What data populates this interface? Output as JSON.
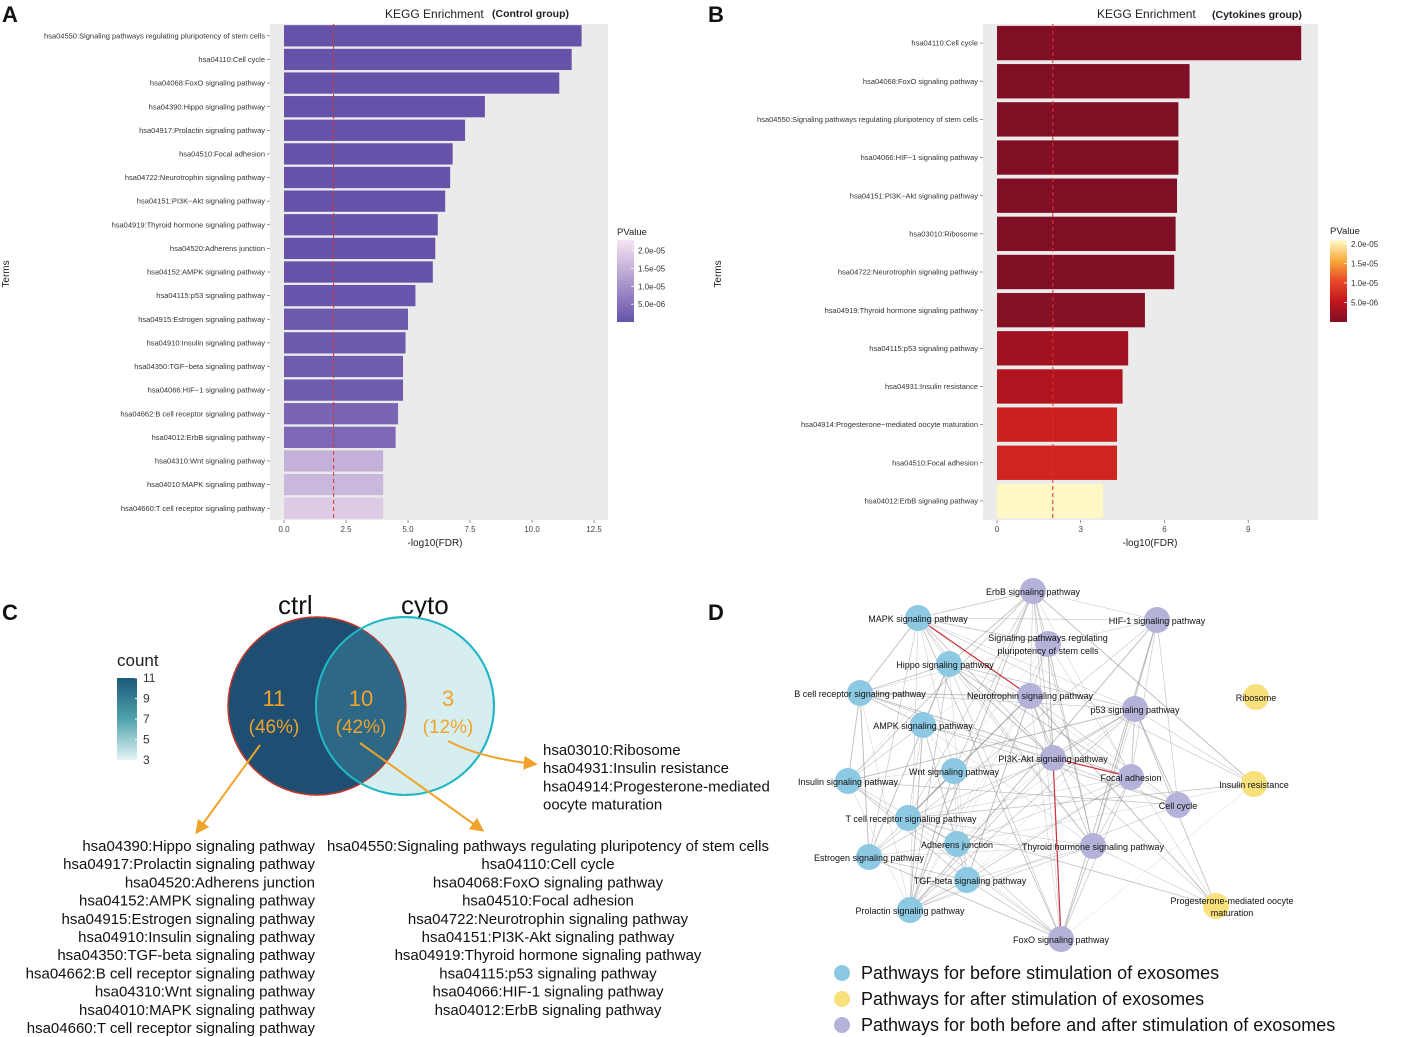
{
  "panels": {
    "a": "A",
    "b": "B",
    "c": "C",
    "d": "D"
  },
  "chart_data": [
    {
      "id": "A",
      "type": "bar",
      "orientation": "horizontal",
      "title": "KEGG Enrichment",
      "subtitle": "(Control group)",
      "xlabel": "-log10(FDR)",
      "ylabel": "Terms",
      "xlim": [
        0,
        12.5
      ],
      "xticks": [
        "0.0",
        "2.5",
        "5.0",
        "7.5",
        "10.0",
        "12.5"
      ],
      "xtick_values": [
        0,
        2.5,
        5,
        7.5,
        10,
        12.5
      ],
      "threshold": 2,
      "legend_title": "PValue",
      "legend_ticks": [
        "2.0e-05",
        "1.5e-05",
        "1.0e-05",
        "5.0e-06"
      ],
      "legend_tick_values": [
        2e-05,
        1.5e-05,
        1e-05,
        5e-06
      ],
      "color_scale": {
        "low": "#6652a9",
        "high": "#f6e4f3",
        "min": 1e-12,
        "max": 2.3e-05
      },
      "categories": [
        "hsa04550:Signaling pathways regulating pluripotency of stem cells",
        "hsa04110:Cell cycle",
        "hsa04068:FoxO signaling pathway",
        "hsa04390:Hippo signaling pathway",
        "hsa04917:Prolactin signaling pathway",
        "hsa04510:Focal adhesion",
        "hsa04722:Neurotrophin signaling pathway",
        "hsa04151:PI3K−Akt signaling pathway",
        "hsa04919:Thyroid hormone signaling pathway",
        "hsa04520:Adherens junction",
        "hsa04152:AMPK signaling pathway",
        "hsa04115:p53 signaling pathway",
        "hsa04915:Estrogen signaling pathway",
        "hsa04910:Insulin signaling pathway",
        "hsa04350:TGF−beta signaling pathway",
        "hsa04066:HIF−1 signaling pathway",
        "hsa04662:B cell receptor signaling pathway",
        "hsa04012:ErbB signaling pathway",
        "hsa04310:Wnt signaling pathway",
        "hsa04010:MAPK signaling pathway",
        "hsa04660:T cell receptor signaling pathway"
      ],
      "values": [
        12.0,
        11.6,
        11.1,
        8.1,
        7.3,
        6.8,
        6.7,
        6.5,
        6.2,
        6.1,
        6.0,
        5.3,
        5.0,
        4.9,
        4.8,
        4.8,
        4.6,
        4.5,
        4.0,
        4.0,
        4.0
      ],
      "pvalues": [
        1e-12,
        1e-12,
        1e-12,
        1e-09,
        1e-08,
        2e-08,
        2e-08,
        3e-08,
        5e-08,
        6e-08,
        7e-08,
        5e-07,
        1e-06,
        1.2e-06,
        1.5e-06,
        1.5e-06,
        3e-06,
        3.5e-06,
        1.5e-05,
        1.6e-05,
        1.9e-05
      ]
    },
    {
      "id": "B",
      "type": "bar",
      "orientation": "horizontal",
      "title": "KEGG Enrichment",
      "subtitle": "(Cytokines group)",
      "xlabel": "-log10(FDR)",
      "ylabel": "Terms",
      "xlim": [
        0,
        11
      ],
      "xticks": [
        "0",
        "3",
        "6",
        "9"
      ],
      "xtick_values": [
        0,
        3,
        6,
        9
      ],
      "threshold": 2,
      "legend_title": "PValue",
      "legend_ticks": [
        "2.0e-05",
        "1.5e-05",
        "1.0e-05",
        "5.0e-06"
      ],
      "legend_tick_values": [
        2e-05,
        1.5e-05,
        1e-05,
        5e-06
      ],
      "color_scale": {
        "stops": [
          "#800f25",
          "#c3161c",
          "#e8482a",
          "#f9aa3a",
          "#fff2b0",
          "#fffacc"
        ],
        "min": 1e-12,
        "max": 2.1e-05
      },
      "categories": [
        "hsa04110:Cell cycle",
        "hsa04068:FoxO signaling pathway",
        "hsa04550:Signaling pathways regulating pluripotency of stem cells",
        "hsa04066:HIF−1 signaling pathway",
        "hsa04151:PI3K−Akt signaling pathway",
        "hsa03010:Ribosome",
        "hsa04722:Neurotrophin signaling pathway",
        "hsa04919:Thyroid hormone signaling pathway",
        "hsa04115:p53 signaling pathway",
        "hsa04931:Insulin resistance",
        "hsa04914:Progesterone−mediated oocyte maturation",
        "hsa04510:Focal adhesion",
        "hsa04012:ErbB signaling pathway"
      ],
      "values": [
        10.9,
        6.9,
        6.5,
        6.5,
        6.45,
        6.4,
        6.35,
        5.3,
        4.7,
        4.5,
        4.3,
        4.3,
        3.8
      ],
      "pvalues": [
        1e-12,
        1e-09,
        1e-08,
        1e-08,
        1e-08,
        1e-08,
        2e-08,
        4e-07,
        2e-06,
        3e-06,
        5e-06,
        5.5e-06,
        2e-05
      ]
    },
    {
      "id": "C",
      "type": "venn",
      "sets": [
        "ctrl",
        "cyto"
      ],
      "regions": [
        {
          "name": "ctrl only",
          "count": "11",
          "percent": "(46%)"
        },
        {
          "name": "both",
          "count": "10",
          "percent": "(42%)"
        },
        {
          "name": "cyto only",
          "count": "3",
          "percent": "(12%)"
        }
      ],
      "legend_title": "count",
      "legend_ticks": [
        "11",
        "9",
        "7",
        "5",
        "3"
      ]
    },
    {
      "id": "D",
      "type": "network",
      "nodes": [
        {
          "label": "ErbB signaling pathway",
          "group": "both"
        },
        {
          "label": "MAPK signaling pathway",
          "group": "before"
        },
        {
          "label": "HIF-1 signaling pathway",
          "group": "both"
        },
        {
          "label": "Signaling pathways regulating pluripotency of stem cells",
          "group": "both"
        },
        {
          "label": "Hippo signaling pathway",
          "group": "before"
        },
        {
          "label": "B cell receptor signaling pathway",
          "group": "before"
        },
        {
          "label": "Neurotrophin signaling pathway",
          "group": "both"
        },
        {
          "label": "Ribosome",
          "group": "after"
        },
        {
          "label": "p53 signaling pathway",
          "group": "both"
        },
        {
          "label": "AMPK signaling pathway",
          "group": "before"
        },
        {
          "label": "PI3K-Akt signaling pathway",
          "group": "both"
        },
        {
          "label": "Insulin signaling pathway",
          "group": "before"
        },
        {
          "label": "Wnt signaling pathway",
          "group": "before"
        },
        {
          "label": "Focal adhesion",
          "group": "both"
        },
        {
          "label": "Insulin resistance",
          "group": "after"
        },
        {
          "label": "Cell cycle",
          "group": "both"
        },
        {
          "label": "T cell receptor signaling pathway",
          "group": "before"
        },
        {
          "label": "Adherens junction",
          "group": "before"
        },
        {
          "label": "Thyroid hormone signaling pathway",
          "group": "both"
        },
        {
          "label": "Estrogen signaling pathway",
          "group": "before"
        },
        {
          "label": "TGF-beta signaling pathway",
          "group": "before"
        },
        {
          "label": "Progesterone-mediated oocyte maturation",
          "group": "after"
        },
        {
          "label": "Prolactin signaling pathway",
          "group": "before"
        },
        {
          "label": "FoxO signaling pathway",
          "group": "both"
        }
      ],
      "legend": [
        {
          "label": "Pathways for before stimulation of exosomes",
          "color": "#8ec9e3"
        },
        {
          "label": "Pathways for after stimulation of exosomes",
          "color": "#f8e07c"
        },
        {
          "label": "Pathways for both before and after stimulation of exosomes",
          "color": "#b5b2d9"
        }
      ]
    }
  ],
  "venn_lists": {
    "cyto_only": [
      "hsa03010:Ribosome",
      "hsa04931:Insulin resistance",
      "hsa04914:Progesterone-mediated",
      "oocyte maturation"
    ],
    "ctrl_only": [
      "hsa04390:Hippo signaling pathway",
      "hsa04917:Prolactin signaling pathway",
      "hsa04520:Adherens junction",
      "hsa04152:AMPK signaling pathway",
      "hsa04915:Estrogen signaling pathway",
      "hsa04910:Insulin signaling pathway",
      "hsa04350:TGF-beta signaling pathway",
      "hsa04662:B cell receptor signaling pathway",
      "hsa04310:Wnt signaling pathway",
      "hsa04010:MAPK signaling pathway",
      "hsa04660:T cell receptor signaling pathway"
    ],
    "shared": [
      "hsa04550:Signaling pathways regulating pluripotency of stem cells",
      "hsa04110:Cell cycle",
      "hsa04068:FoxO signaling pathway",
      "hsa04510:Focal adhesion",
      "hsa04722:Neurotrophin signaling pathway",
      "hsa04151:PI3K-Akt signaling pathway",
      "hsa04919:Thyroid hormone signaling pathway",
      "hsa04115:p53 signaling pathway",
      "hsa04066:HIF-1 signaling pathway",
      "hsa04012:ErbB signaling pathway"
    ]
  },
  "colors": {
    "panel_bg": "#ebebeb",
    "threshold_line": "#e0322e",
    "venn_ctrl": "#1f4e73",
    "venn_ctrl_stroke": "#c0392b",
    "venn_overlap": "#2d6886",
    "venn_cyto": "#d7eef0",
    "venn_cyto_stroke": "#23b6c4",
    "arrow": "#f0a32a",
    "count_high": "#1c5a7a",
    "count_low": "#e3f4f5",
    "edge": "#8a8a8a",
    "edge_red": "#d0303a"
  }
}
